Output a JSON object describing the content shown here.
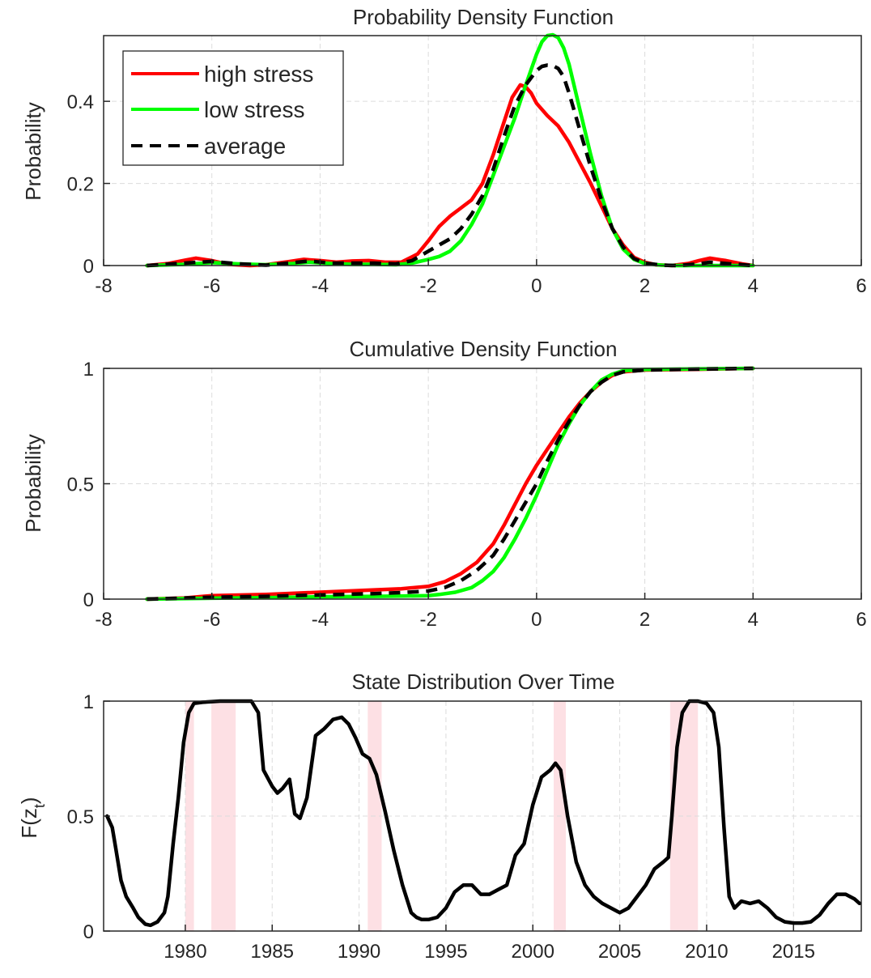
{
  "colors": {
    "high_stress": "#ff0000",
    "low_stress": "#00ff00",
    "average": "#000000",
    "recession_band": "#fde0e4",
    "grid": "#dcdcdc",
    "axis": "#262626"
  },
  "chart_data": [
    {
      "id": "pdf",
      "type": "line",
      "title": "Probability Density Function",
      "xlabel": "",
      "ylabel": "Probability",
      "xlim": [
        -8,
        6
      ],
      "ylim": [
        0,
        0.56
      ],
      "xticks": [
        -8,
        -6,
        -4,
        -2,
        0,
        2,
        4,
        6
      ],
      "xtick_labels": [
        "-8",
        "-6",
        "-4",
        "-2",
        "0",
        "2",
        "4",
        "6"
      ],
      "yticks": [
        0,
        0.2,
        0.4
      ],
      "ytick_labels": [
        "0",
        "0.2",
        "0.4"
      ],
      "grid": true,
      "legend": {
        "position": "top-left",
        "entries": [
          {
            "label": "high stress",
            "series": "high_stress",
            "style": "solid"
          },
          {
            "label": "low stress",
            "series": "low_stress",
            "style": "solid"
          },
          {
            "label": "average",
            "series": "average",
            "style": "dashed"
          }
        ]
      },
      "series": [
        {
          "name": "high stress",
          "key": "high_stress",
          "style": "solid",
          "x": [
            -7.2,
            -6.8,
            -6.5,
            -6.3,
            -6.0,
            -5.7,
            -5.3,
            -5.0,
            -4.6,
            -4.3,
            -4.0,
            -3.7,
            -3.4,
            -3.1,
            -2.8,
            -2.5,
            -2.2,
            -2.0,
            -1.8,
            -1.6,
            -1.4,
            -1.2,
            -1.0,
            -0.8,
            -0.6,
            -0.45,
            -0.3,
            -0.2,
            -0.1,
            0.0,
            0.2,
            0.4,
            0.6,
            0.8,
            1.0,
            1.2,
            1.4,
            1.6,
            1.8,
            2.0,
            2.2,
            2.5,
            2.8,
            3.0,
            3.2,
            3.5,
            3.8,
            4.0
          ],
          "y": [
            0.0,
            0.005,
            0.013,
            0.018,
            0.012,
            0.003,
            0.0,
            0.002,
            0.009,
            0.015,
            0.012,
            0.008,
            0.011,
            0.012,
            0.008,
            0.008,
            0.028,
            0.06,
            0.095,
            0.12,
            0.14,
            0.16,
            0.2,
            0.27,
            0.35,
            0.41,
            0.44,
            0.435,
            0.42,
            0.395,
            0.365,
            0.34,
            0.3,
            0.25,
            0.2,
            0.145,
            0.09,
            0.05,
            0.02,
            0.008,
            0.002,
            0.0,
            0.005,
            0.012,
            0.018,
            0.012,
            0.004,
            0.0
          ]
        },
        {
          "name": "low stress",
          "key": "low_stress",
          "style": "solid",
          "x": [
            -7.2,
            -6.5,
            -6.0,
            -5.5,
            -5.0,
            -4.5,
            -4.2,
            -3.8,
            -3.4,
            -3.0,
            -2.6,
            -2.3,
            -2.0,
            -1.8,
            -1.6,
            -1.4,
            -1.2,
            -1.0,
            -0.8,
            -0.6,
            -0.4,
            -0.2,
            0.0,
            0.1,
            0.2,
            0.3,
            0.4,
            0.5,
            0.6,
            0.8,
            1.0,
            1.2,
            1.4,
            1.6,
            1.8,
            2.0,
            2.3,
            2.6,
            3.0,
            3.5,
            4.0
          ],
          "y": [
            0.0,
            0.003,
            0.007,
            0.004,
            0.002,
            0.005,
            0.008,
            0.005,
            0.003,
            0.003,
            0.002,
            0.006,
            0.015,
            0.022,
            0.035,
            0.06,
            0.1,
            0.15,
            0.22,
            0.29,
            0.36,
            0.44,
            0.515,
            0.545,
            0.56,
            0.562,
            0.555,
            0.53,
            0.49,
            0.38,
            0.27,
            0.17,
            0.09,
            0.04,
            0.015,
            0.005,
            0.001,
            0.0,
            0.0,
            0.0,
            0.0
          ]
        },
        {
          "name": "average",
          "key": "average",
          "style": "dashed",
          "x": [
            -7.2,
            -6.5,
            -6.0,
            -5.5,
            -5.0,
            -4.5,
            -4.2,
            -3.8,
            -3.4,
            -3.0,
            -2.6,
            -2.3,
            -2.0,
            -1.8,
            -1.6,
            -1.4,
            -1.2,
            -1.0,
            -0.8,
            -0.6,
            -0.4,
            -0.2,
            0.0,
            0.1,
            0.2,
            0.3,
            0.4,
            0.5,
            0.6,
            0.8,
            1.0,
            1.2,
            1.4,
            1.6,
            1.8,
            2.0,
            2.3,
            2.6,
            3.0,
            3.2,
            3.5,
            4.0
          ],
          "y": [
            0.0,
            0.006,
            0.01,
            0.004,
            0.001,
            0.007,
            0.011,
            0.006,
            0.006,
            0.006,
            0.004,
            0.012,
            0.035,
            0.05,
            0.065,
            0.09,
            0.125,
            0.17,
            0.235,
            0.315,
            0.39,
            0.44,
            0.475,
            0.485,
            0.488,
            0.487,
            0.48,
            0.46,
            0.42,
            0.33,
            0.24,
            0.16,
            0.09,
            0.045,
            0.017,
            0.006,
            0.001,
            0.0,
            0.004,
            0.008,
            0.005,
            0.0
          ]
        }
      ]
    },
    {
      "id": "cdf",
      "type": "line",
      "title": "Cumulative Density Function",
      "xlabel": "",
      "ylabel": "Probability",
      "xlim": [
        -8,
        6
      ],
      "ylim": [
        0,
        1
      ],
      "xticks": [
        -8,
        -6,
        -4,
        -2,
        0,
        2,
        4,
        6
      ],
      "xtick_labels": [
        "-8",
        "-6",
        "-4",
        "-2",
        "0",
        "2",
        "4",
        "6"
      ],
      "yticks": [
        0,
        0.5,
        1
      ],
      "ytick_labels": [
        "0",
        "0.5",
        "1"
      ],
      "grid": true,
      "series": [
        {
          "name": "high stress",
          "key": "high_stress",
          "style": "solid",
          "x": [
            -7.2,
            -6.5,
            -6.0,
            -5.0,
            -4.0,
            -3.0,
            -2.5,
            -2.0,
            -1.7,
            -1.4,
            -1.1,
            -0.8,
            -0.6,
            -0.4,
            -0.2,
            0.0,
            0.2,
            0.4,
            0.6,
            0.8,
            1.0,
            1.2,
            1.4,
            1.6,
            2.0,
            3.0,
            4.0
          ],
          "y": [
            0.0,
            0.005,
            0.015,
            0.02,
            0.03,
            0.04,
            0.045,
            0.055,
            0.075,
            0.11,
            0.16,
            0.24,
            0.32,
            0.41,
            0.5,
            0.58,
            0.65,
            0.72,
            0.79,
            0.85,
            0.9,
            0.94,
            0.97,
            0.985,
            0.993,
            0.996,
            1.0
          ]
        },
        {
          "name": "low stress",
          "key": "low_stress",
          "style": "solid",
          "x": [
            -7.2,
            -6.0,
            -5.0,
            -4.0,
            -3.0,
            -2.5,
            -2.0,
            -1.8,
            -1.5,
            -1.2,
            -1.0,
            -0.8,
            -0.6,
            -0.4,
            -0.2,
            0.0,
            0.2,
            0.4,
            0.6,
            0.8,
            1.0,
            1.2,
            1.4,
            1.6,
            2.0,
            3.0,
            4.0
          ],
          "y": [
            0.0,
            0.004,
            0.006,
            0.01,
            0.012,
            0.013,
            0.015,
            0.02,
            0.03,
            0.05,
            0.08,
            0.12,
            0.18,
            0.26,
            0.35,
            0.45,
            0.56,
            0.67,
            0.76,
            0.84,
            0.9,
            0.95,
            0.975,
            0.99,
            0.995,
            0.998,
            1.0
          ]
        },
        {
          "name": "average",
          "key": "average",
          "style": "dashed",
          "x": [
            -7.2,
            -6.0,
            -5.0,
            -4.0,
            -3.0,
            -2.5,
            -2.0,
            -1.7,
            -1.4,
            -1.1,
            -0.8,
            -0.6,
            -0.4,
            -0.2,
            0.0,
            0.2,
            0.4,
            0.6,
            0.8,
            1.0,
            1.2,
            1.4,
            1.6,
            2.0,
            3.0,
            4.0
          ],
          "y": [
            0.0,
            0.008,
            0.012,
            0.018,
            0.024,
            0.028,
            0.035,
            0.05,
            0.08,
            0.125,
            0.19,
            0.26,
            0.34,
            0.42,
            0.5,
            0.6,
            0.69,
            0.77,
            0.84,
            0.9,
            0.94,
            0.97,
            0.985,
            0.993,
            0.997,
            1.0
          ]
        }
      ]
    },
    {
      "id": "state",
      "type": "line",
      "title": "State Distribution Over Time",
      "xlabel": "",
      "ylabel": "F(z_t)",
      "xlim": [
        1975.3,
        2018.9
      ],
      "ylim": [
        0,
        1
      ],
      "xticks": [
        1980,
        1985,
        1990,
        1995,
        2000,
        2005,
        2010,
        2015
      ],
      "xtick_labels": [
        "1980",
        "1985",
        "1990",
        "1995",
        "2000",
        "2005",
        "2010",
        "2015"
      ],
      "yticks": [
        0,
        0.5,
        1
      ],
      "ytick_labels": [
        "0",
        "0.5",
        "1"
      ],
      "grid": true,
      "recession_bands": [
        [
          1980.0,
          1980.5
        ],
        [
          1981.5,
          1982.9
        ],
        [
          1990.5,
          1991.3
        ],
        [
          2001.2,
          2001.9
        ],
        [
          2007.9,
          2009.5
        ]
      ],
      "series": [
        {
          "name": "",
          "key": "average",
          "style": "solid",
          "x": [
            1975.5,
            1975.8,
            1976.0,
            1976.3,
            1976.6,
            1977.0,
            1977.3,
            1977.7,
            1978.0,
            1978.4,
            1978.8,
            1979.0,
            1979.3,
            1979.6,
            1979.9,
            1980.2,
            1980.5,
            1981.0,
            1982.0,
            1983.0,
            1983.8,
            1984.2,
            1984.5,
            1985.0,
            1985.3,
            1985.6,
            1986.0,
            1986.3,
            1986.6,
            1987.0,
            1987.5,
            1988.0,
            1988.5,
            1989.0,
            1989.4,
            1989.8,
            1990.2,
            1990.6,
            1991.0,
            1991.5,
            1992.0,
            1992.5,
            1993.0,
            1993.3,
            1993.6,
            1994.0,
            1994.5,
            1995.0,
            1995.5,
            1996.0,
            1996.5,
            1997.0,
            1997.5,
            1998.0,
            1998.5,
            1999.0,
            1999.5,
            2000.0,
            2000.5,
            2001.0,
            2001.3,
            2001.6,
            2002.0,
            2002.5,
            2003.0,
            2003.5,
            2004.0,
            2004.5,
            2005.0,
            2005.5,
            2006.0,
            2006.5,
            2007.0,
            2007.5,
            2007.8,
            2008.0,
            2008.3,
            2008.6,
            2009.0,
            2009.5,
            2010.0,
            2010.4,
            2010.7,
            2011.0,
            2011.3,
            2011.6,
            2012.0,
            2012.5,
            2013.0,
            2013.5,
            2014.0,
            2014.5,
            2015.0,
            2015.5,
            2016.0,
            2016.5,
            2017.0,
            2017.5,
            2018.0,
            2018.5,
            2018.8
          ],
          "y": [
            0.5,
            0.45,
            0.36,
            0.22,
            0.15,
            0.1,
            0.06,
            0.03,
            0.025,
            0.04,
            0.08,
            0.15,
            0.38,
            0.58,
            0.82,
            0.95,
            0.99,
            0.995,
            1.0,
            1.0,
            1.0,
            0.95,
            0.7,
            0.63,
            0.6,
            0.62,
            0.66,
            0.51,
            0.49,
            0.58,
            0.85,
            0.88,
            0.92,
            0.93,
            0.9,
            0.84,
            0.77,
            0.75,
            0.68,
            0.52,
            0.35,
            0.2,
            0.08,
            0.06,
            0.05,
            0.05,
            0.06,
            0.1,
            0.17,
            0.2,
            0.2,
            0.16,
            0.16,
            0.18,
            0.2,
            0.33,
            0.38,
            0.55,
            0.67,
            0.7,
            0.73,
            0.7,
            0.5,
            0.3,
            0.2,
            0.15,
            0.12,
            0.1,
            0.08,
            0.1,
            0.15,
            0.2,
            0.27,
            0.3,
            0.32,
            0.5,
            0.8,
            0.95,
            1.0,
            1.0,
            0.99,
            0.95,
            0.8,
            0.45,
            0.15,
            0.1,
            0.13,
            0.12,
            0.13,
            0.1,
            0.06,
            0.04,
            0.035,
            0.035,
            0.04,
            0.07,
            0.12,
            0.16,
            0.16,
            0.14,
            0.12
          ]
        }
      ]
    }
  ]
}
